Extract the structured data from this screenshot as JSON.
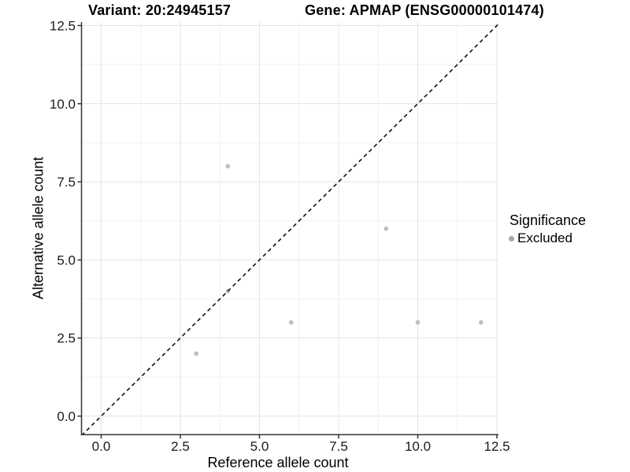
{
  "header": {
    "variant_title": "Variant: 20:24945157",
    "gene_title": "Gene: APMAP (ENSG00000101474)"
  },
  "chart_data": {
    "type": "scatter",
    "title": "Variant: 20:24945157   Gene: APMAP (ENSG00000101474)",
    "xlabel": "Reference allele count",
    "ylabel": "Alternative allele count",
    "xlim": [
      -0.62,
      12.55
    ],
    "ylim": [
      -0.59,
      12.62
    ],
    "x_ticks": [
      0,
      2.5,
      5,
      7.5,
      10,
      12.5
    ],
    "x_tick_labels": [
      "0.0",
      "2.5",
      "5.0",
      "7.5",
      "10.0",
      "12.5"
    ],
    "y_ticks": [
      0,
      2.5,
      5,
      7.5,
      10,
      12.5
    ],
    "y_tick_labels": [
      "0.0",
      "2.5",
      "5.0",
      "7.5",
      "10.0",
      "12.5"
    ],
    "grid": "major+minor",
    "legend_position": "right",
    "series": [
      {
        "name": "Excluded",
        "color": "#bdbdbd",
        "points": [
          [
            3,
            2
          ],
          [
            4,
            4
          ],
          [
            4,
            8
          ],
          [
            6,
            3
          ],
          [
            9,
            6
          ],
          [
            10,
            3
          ],
          [
            12,
            3
          ]
        ]
      }
    ],
    "reference_line": {
      "type": "identity",
      "slope": 1,
      "intercept": 0,
      "style": "dashed",
      "color": "#111111"
    }
  },
  "legend": {
    "title": "Significance",
    "items": [
      {
        "label": "Excluded",
        "color": "#a6a6a6"
      }
    ]
  },
  "colors": {
    "point": "#bdbdbd",
    "grid_major": "#e4e4e4",
    "grid_minor": "#f1f1f1",
    "axis_line": "#333333",
    "tick_text": "#1a1a1a",
    "dashed_line": "#111111",
    "background": "#ffffff"
  }
}
